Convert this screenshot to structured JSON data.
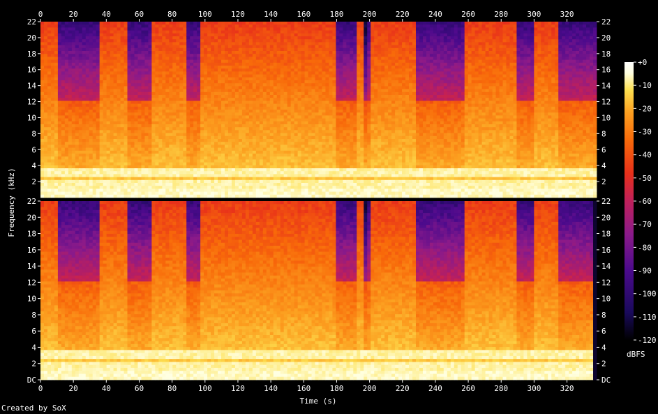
{
  "chart_data": {
    "type": "heatmap",
    "xlabel": "Time (s)",
    "ylabel": "Frequency (kHz)",
    "x_ticks": [
      "0",
      "20",
      "40",
      "60",
      "80",
      "100",
      "120",
      "140",
      "160",
      "180",
      "200",
      "220",
      "240",
      "260",
      "280",
      "300",
      "320"
    ],
    "xlim": [
      0,
      338
    ],
    "channels": [
      {
        "y_ticks": [
          "2",
          "4",
          "6",
          "8",
          "10",
          "12",
          "14",
          "16",
          "18",
          "20",
          "22"
        ],
        "ylim": [
          0,
          22
        ]
      },
      {
        "y_ticks": [
          "DC",
          "2",
          "4",
          "6",
          "8",
          "10",
          "12",
          "14",
          "16",
          "18",
          "20",
          "22"
        ],
        "ylim": [
          0,
          22
        ]
      }
    ],
    "colorbar": {
      "label": "dBFS",
      "ticks": [
        "+0",
        "-10",
        "-20",
        "-30",
        "-40",
        "-50",
        "-60",
        "-70",
        "-80",
        "-90",
        "-100",
        "-110",
        "-120"
      ],
      "range": [
        -120,
        0
      ]
    },
    "colormap": [
      "#000000",
      "#1a0a5c",
      "#4b0a8c",
      "#8a1a8a",
      "#c0205a",
      "#e8301a",
      "#f86a0a",
      "#fca020",
      "#fde050",
      "#ffffe0",
      "#ffffff"
    ]
  },
  "footer": {
    "credit": "Created by SoX"
  }
}
